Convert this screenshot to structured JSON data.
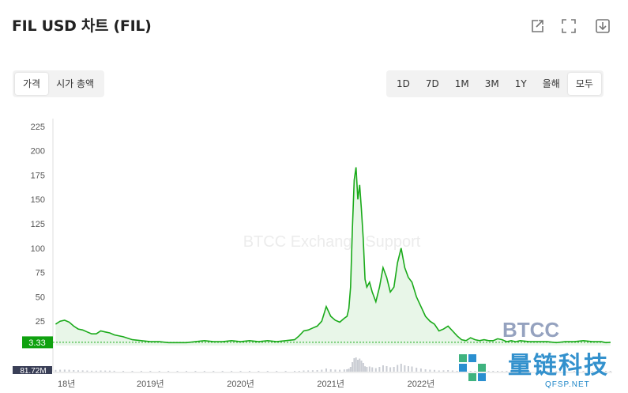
{
  "header": {
    "title": "FIL USD 차트 (FIL)"
  },
  "toolbar": {
    "icons": [
      "share-icon",
      "fullscreen-icon",
      "download-icon"
    ]
  },
  "metric_tabs": [
    {
      "label": "가격",
      "active": true
    },
    {
      "label": "시가 총액",
      "active": false
    }
  ],
  "range_tabs": [
    {
      "label": "1D",
      "active": false
    },
    {
      "label": "7D",
      "active": false
    },
    {
      "label": "1M",
      "active": false
    },
    {
      "label": "3M",
      "active": false
    },
    {
      "label": "1Y",
      "active": false
    },
    {
      "label": "올해",
      "active": false
    },
    {
      "label": "모두",
      "active": true
    }
  ],
  "watermarks": {
    "center": "BTCC Exchange Support",
    "logo": "BTCC",
    "brand": "量链科技",
    "url": "QFSP.NET"
  },
  "colors": {
    "line": "#1aaa1a",
    "area": "#e8f6e8",
    "price_tag": "#0fa10f",
    "volume": "#c9ccd3"
  },
  "chart_data": {
    "type": "area",
    "y_ticks": [
      25,
      50,
      75,
      100,
      125,
      150,
      175,
      200,
      225
    ],
    "ylim": [
      0,
      233
    ],
    "x_ticks": [
      "18년",
      "2019년",
      "2020년",
      "2021년",
      "2022년"
    ],
    "current_price_label": "3.33",
    "current_price": 3.33,
    "volume_label": "81.72M",
    "series": [
      {
        "x": [
          2017.95,
          2018.0,
          2018.05,
          2018.1,
          2018.15,
          2018.2,
          2018.25,
          2018.3,
          2018.35,
          2018.4,
          2018.45,
          2018.5,
          2018.55,
          2018.6,
          2018.7,
          2018.8,
          2018.9,
          2019.0,
          2019.1,
          2019.2,
          2019.3,
          2019.4,
          2019.5,
          2019.6,
          2019.7,
          2019.8,
          2019.9,
          2020.0,
          2020.1,
          2020.2,
          2020.3,
          2020.4,
          2020.5,
          2020.6,
          2020.65,
          2020.7,
          2020.75,
          2020.8,
          2020.85,
          2020.9,
          2020.95,
          2021.0,
          2021.05,
          2021.1,
          2021.15,
          2021.18,
          2021.2,
          2021.22,
          2021.24,
          2021.26,
          2021.28,
          2021.3,
          2021.32,
          2021.34,
          2021.36,
          2021.38,
          2021.4,
          2021.43,
          2021.46,
          2021.5,
          2021.54,
          2021.58,
          2021.62,
          2021.66,
          2021.7,
          2021.74,
          2021.78,
          2021.82,
          2021.86,
          2021.9,
          2021.95,
          2022.0,
          2022.05,
          2022.1,
          2022.15,
          2022.2,
          2022.25,
          2022.3,
          2022.35,
          2022.4,
          2022.45,
          2022.5,
          2022.55,
          2022.6,
          2022.65,
          2022.7,
          2022.75,
          2022.8,
          2022.85,
          2022.9,
          2022.95,
          2023.0,
          2023.05,
          2023.1,
          2023.2,
          2023.3,
          2023.4,
          2023.5,
          2023.6,
          2023.7,
          2023.8,
          2023.9,
          2024.0,
          2024.05,
          2024.1
        ],
        "y": [
          22,
          25,
          26,
          24,
          20,
          17,
          16,
          14,
          12,
          12,
          15,
          14,
          13,
          11,
          9,
          6,
          5,
          4,
          4,
          3,
          3,
          3,
          4,
          5,
          4,
          4,
          5,
          4,
          5,
          4,
          5,
          4,
          5,
          6,
          10,
          15,
          16,
          18,
          20,
          25,
          40,
          30,
          26,
          24,
          28,
          30,
          38,
          60,
          120,
          170,
          183,
          150,
          165,
          140,
          110,
          68,
          60,
          65,
          55,
          45,
          60,
          80,
          70,
          55,
          60,
          85,
          100,
          80,
          70,
          65,
          50,
          40,
          30,
          25,
          22,
          15,
          17,
          20,
          15,
          10,
          6,
          5,
          8,
          6,
          5,
          6,
          5,
          5,
          7,
          6,
          4,
          5,
          4,
          5,
          4,
          4,
          4,
          3,
          4,
          4,
          5,
          4,
          4,
          3,
          3.33
        ]
      }
    ]
  }
}
